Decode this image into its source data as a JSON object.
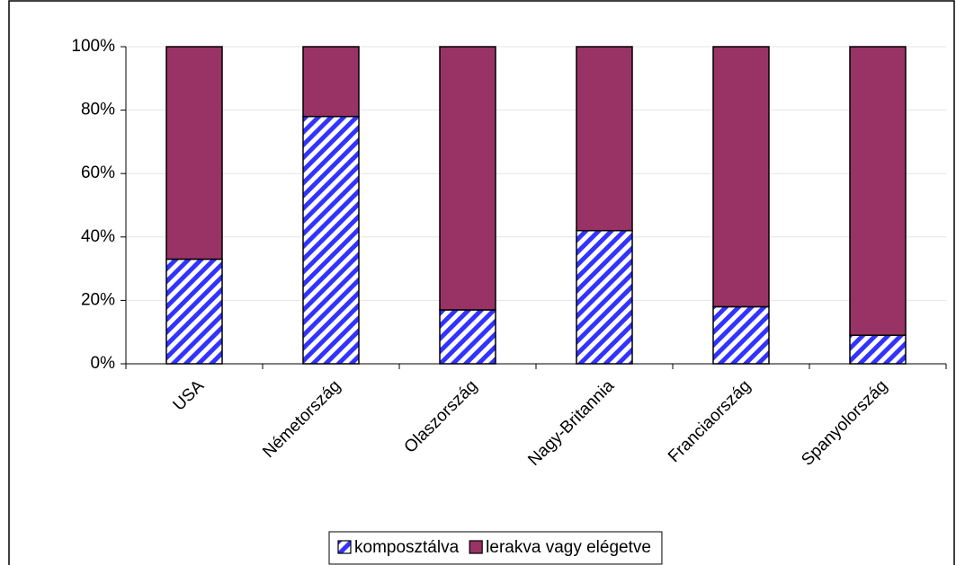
{
  "chart_data": {
    "type": "stacked_bar",
    "categories": [
      "USA",
      "Németország",
      "Olaszország",
      "Nagy-Britannia",
      "Franciaország",
      "Spanyolország"
    ],
    "series": [
      {
        "name": "komposztálva",
        "color": "#3333ff",
        "pattern": "hatch",
        "values": [
          33,
          78,
          17,
          42,
          18,
          9
        ]
      },
      {
        "name": "lerakva vagy elégetve",
        "color": "#993366",
        "values": [
          67,
          22,
          83,
          58,
          82,
          91
        ]
      }
    ],
    "ylim": [
      0,
      100
    ],
    "yticks": [
      {
        "value": 0,
        "label": "0%"
      },
      {
        "value": 20,
        "label": "20%"
      },
      {
        "value": 40,
        "label": "40%"
      },
      {
        "value": 60,
        "label": "60%"
      },
      {
        "value": 80,
        "label": "80%"
      },
      {
        "value": 100,
        "label": "100%"
      }
    ],
    "grid": true,
    "legend": "bottom"
  }
}
